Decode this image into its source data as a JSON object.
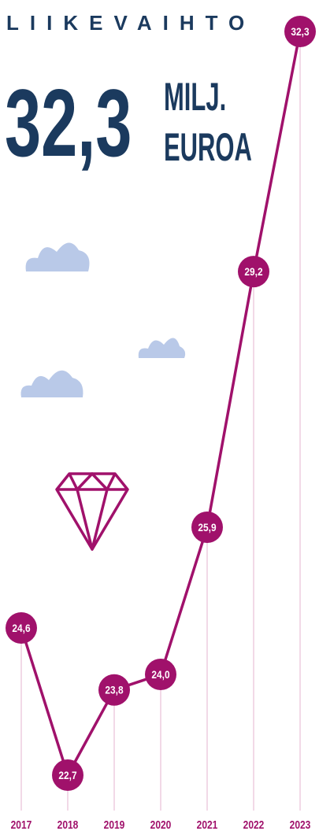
{
  "chart_data": {
    "type": "line",
    "title": "LIIKEVAIHTO",
    "headline": "32,3",
    "headline_unit": [
      "MILJ.",
      "EUROA"
    ],
    "categories": [
      "2017",
      "2018",
      "2019",
      "2020",
      "2021",
      "2022",
      "2023"
    ],
    "values": [
      24.6,
      22.7,
      23.8,
      24.0,
      25.9,
      29.2,
      32.3
    ],
    "value_labels": [
      "24,6",
      "22,7",
      "23,8",
      "24,0",
      "25,9",
      "29,2",
      "32,3"
    ],
    "color": "#a0116b"
  }
}
